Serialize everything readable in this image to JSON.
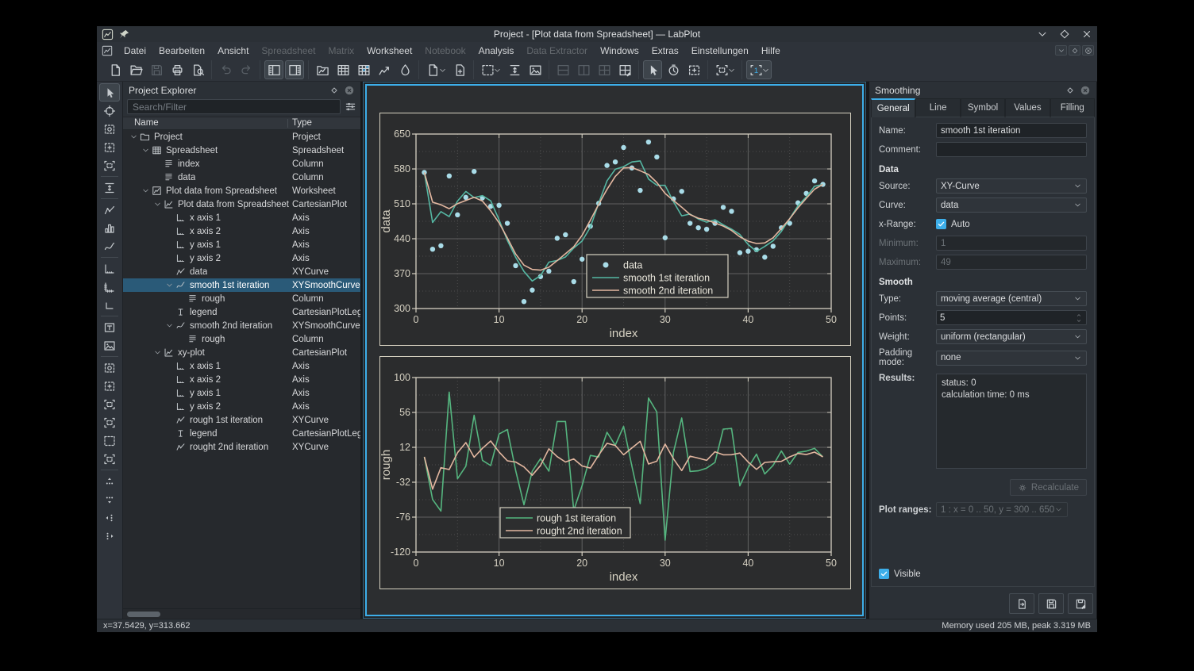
{
  "window": {
    "title": "Project - [Plot data from Spreadsheet] — LabPlot",
    "controls": [
      "minimize",
      "maximize",
      "close"
    ]
  },
  "menubar": {
    "items": [
      {
        "label": "Datei",
        "enabled": true
      },
      {
        "label": "Bearbeiten",
        "enabled": true
      },
      {
        "label": "Ansicht",
        "enabled": true
      },
      {
        "label": "Spreadsheet",
        "enabled": false
      },
      {
        "label": "Matrix",
        "enabled": false
      },
      {
        "label": "Worksheet",
        "enabled": true
      },
      {
        "label": "Notebook",
        "enabled": false
      },
      {
        "label": "Analysis",
        "enabled": true
      },
      {
        "label": "Data Extractor",
        "enabled": false
      },
      {
        "label": "Windows",
        "enabled": true
      },
      {
        "label": "Extras",
        "enabled": true
      },
      {
        "label": "Einstellungen",
        "enabled": true
      },
      {
        "label": "Hilfe",
        "enabled": true
      }
    ],
    "mdi_controls": [
      "chevron-down",
      "restore-diamond",
      "close-circle"
    ]
  },
  "toolbar": {
    "groups": [
      {
        "buttons": [
          {
            "icon": "document-new"
          },
          {
            "icon": "document-open"
          },
          {
            "icon": "document-save",
            "disabled": true
          },
          {
            "icon": "document-print"
          },
          {
            "icon": "print-preview"
          }
        ]
      },
      {
        "buttons": [
          {
            "icon": "edit-undo",
            "disabled": true
          },
          {
            "icon": "edit-redo",
            "disabled": true
          }
        ]
      },
      {
        "buttons": [
          {
            "icon": "panel-left",
            "active": true
          },
          {
            "icon": "panel-right",
            "active": true
          }
        ]
      },
      {
        "buttons": [
          {
            "icon": "new-workbook"
          },
          {
            "icon": "new-spreadsheet"
          },
          {
            "icon": "new-matrix"
          },
          {
            "icon": "new-live-data"
          },
          {
            "icon": "new-note"
          }
        ]
      },
      {
        "buttons": [
          {
            "icon": "document-new",
            "chevron": true
          },
          {
            "icon": "cas-doc"
          }
        ]
      },
      {
        "buttons": [
          {
            "icon": "zoom-select",
            "chevron": true
          },
          {
            "icon": "fit-selection"
          },
          {
            "icon": "export-image"
          }
        ]
      },
      {
        "buttons": [
          {
            "icon": "layout-vertical",
            "disabled": true
          },
          {
            "icon": "layout-horizontal",
            "disabled": true
          },
          {
            "icon": "layout-grid",
            "disabled": true
          },
          {
            "icon": "layout-edit"
          }
        ]
      },
      {
        "buttons": [
          {
            "icon": "cursor-arrow",
            "active": true
          },
          {
            "icon": "timer"
          },
          {
            "icon": "select-region"
          }
        ]
      },
      {
        "buttons": [
          {
            "icon": "plot-range",
            "chevron": true
          }
        ]
      },
      {
        "buttons": [
          {
            "icon": "plot-range-1",
            "active": true,
            "chevron": true
          }
        ]
      }
    ]
  },
  "left_toolbar": {
    "icons": [
      {
        "icon": "cursor-arrow",
        "active": true
      },
      {
        "icon": "navigate-crosshair"
      },
      {
        "icon": "zoom-box"
      },
      {
        "icon": "select-region"
      },
      {
        "icon": "plot-range"
      },
      {
        "sep": true
      },
      {
        "icon": "fit-selection"
      },
      {
        "sep": true
      },
      {
        "icon": "xy-curve"
      },
      {
        "icon": "histogram"
      },
      {
        "icon": "smooth-curve"
      },
      {
        "sep": true
      },
      {
        "icon": "axis"
      },
      {
        "icon": "axis-ticks"
      },
      {
        "icon": "axis-small"
      },
      {
        "sep": true
      },
      {
        "icon": "text-label"
      },
      {
        "icon": "export-image"
      },
      {
        "sep": true
      },
      {
        "icon": "zoom-box"
      },
      {
        "icon": "select-region"
      },
      {
        "icon": "plot-range"
      },
      {
        "icon": "plot-range"
      },
      {
        "icon": "zoom-select"
      },
      {
        "icon": "plot-range"
      },
      {
        "sep": true
      },
      {
        "icon": "move-dots-up"
      },
      {
        "icon": "move-dots-down"
      },
      {
        "icon": "move-dots-left"
      },
      {
        "icon": "move-dots-right"
      }
    ]
  },
  "project_explorer": {
    "title": "Project Explorer",
    "search_placeholder": "Search/Filter",
    "columns": [
      "Name",
      "Type"
    ],
    "rows": [
      {
        "name": "Project",
        "type": "Project",
        "depth": 0,
        "icon": "folder",
        "expanded": true
      },
      {
        "name": "Spreadsheet",
        "type": "Spreadsheet",
        "depth": 1,
        "icon": "spreadsheet",
        "expanded": true
      },
      {
        "name": "index",
        "type": "Column",
        "depth": 2,
        "icon": "column"
      },
      {
        "name": "data",
        "type": "Column",
        "depth": 2,
        "icon": "column"
      },
      {
        "name": "Plot data from Spreadsheet",
        "type": "Worksheet",
        "depth": 1,
        "icon": "worksheet",
        "expanded": true
      },
      {
        "name": "Plot data from Spreadsheet",
        "type": "CartesianPlot",
        "depth": 2,
        "icon": "plot",
        "expanded": true
      },
      {
        "name": "x axis 1",
        "type": "Axis",
        "depth": 3,
        "icon": "axis"
      },
      {
        "name": "x axis 2",
        "type": "Axis",
        "depth": 3,
        "icon": "axis"
      },
      {
        "name": "y axis 1",
        "type": "Axis",
        "depth": 3,
        "icon": "axis"
      },
      {
        "name": "y axis 2",
        "type": "Axis",
        "depth": 3,
        "icon": "axis"
      },
      {
        "name": "data",
        "type": "XYCurve",
        "depth": 3,
        "icon": "xy-curve"
      },
      {
        "name": "smooth 1st iteration",
        "type": "XYSmoothCurve",
        "depth": 3,
        "icon": "smooth-curve",
        "expanded": true,
        "selected": true
      },
      {
        "name": "rough",
        "type": "Column",
        "depth": 4,
        "icon": "column"
      },
      {
        "name": "legend",
        "type": "CartesianPlotLegend",
        "depth": 3,
        "icon": "legend"
      },
      {
        "name": "smooth 2nd iteration",
        "type": "XYSmoothCurve",
        "depth": 3,
        "icon": "smooth-curve",
        "expanded": true
      },
      {
        "name": "rough",
        "type": "Column",
        "depth": 4,
        "icon": "column"
      },
      {
        "name": "xy-plot",
        "type": "CartesianPlot",
        "depth": 2,
        "icon": "plot",
        "expanded": true
      },
      {
        "name": "x axis 1",
        "type": "Axis",
        "depth": 3,
        "icon": "axis"
      },
      {
        "name": "x axis 2",
        "type": "Axis",
        "depth": 3,
        "icon": "axis"
      },
      {
        "name": "y axis 1",
        "type": "Axis",
        "depth": 3,
        "icon": "axis"
      },
      {
        "name": "y axis 2",
        "type": "Axis",
        "depth": 3,
        "icon": "axis"
      },
      {
        "name": "rough 1st iteration",
        "type": "XYCurve",
        "depth": 3,
        "icon": "xy-curve"
      },
      {
        "name": "legend",
        "type": "CartesianPlotLegend",
        "depth": 3,
        "icon": "legend"
      },
      {
        "name": "rought 2nd iteration",
        "type": "XYCurve",
        "depth": 3,
        "icon": "xy-curve"
      }
    ]
  },
  "chart_data": [
    {
      "type": "scatter",
      "title": "",
      "xlabel": "index",
      "ylabel": "data",
      "xlim": [
        0,
        50
      ],
      "ylim": [
        300,
        650
      ],
      "xticks": [
        0,
        10,
        20,
        30,
        40,
        50
      ],
      "xticks_minor": [
        5,
        15,
        25,
        35,
        45
      ],
      "yticks": [
        300,
        370,
        440,
        510,
        580,
        650
      ],
      "yticks_minor": [
        335,
        405,
        475,
        545,
        615
      ],
      "grid": "major solid, minor dashed",
      "x_start": 1,
      "series": [
        {
          "name": "data",
          "key": "data",
          "type": "scatter",
          "color": "#a9dce8",
          "values": [
            573,
            419,
            426,
            566,
            488,
            523,
            575,
            522,
            505,
            507,
            471,
            386,
            314,
            337,
            364,
            375,
            441,
            448,
            354,
            399,
            465,
            511,
            587,
            594,
            623,
            582,
            537,
            634,
            604,
            442,
            520,
            535,
            471,
            462,
            459,
            471,
            503,
            495,
            412,
            415,
            418,
            403,
            425,
            462,
            471,
            512,
            531,
            556,
            549
          ]
        },
        {
          "name": "smooth 1st iteration",
          "key": "smooth1",
          "type": "line",
          "color": "#55b7a3",
          "derived": "5-point central moving average of data, 1 iteration, uniform weight, no padding"
        },
        {
          "name": "smooth 2nd iteration",
          "key": "smooth2",
          "type": "line",
          "color": "#e3b7a0",
          "derived": "5-point central moving average of data, 2 iterations, uniform weight, no padding"
        }
      ],
      "legend": {
        "position": "inside, center-right",
        "items": [
          "data",
          "smooth 1st iteration",
          "smooth 2nd iteration"
        ],
        "px": {
          "x": 215,
          "y": 152,
          "w": 178,
          "h": 54
        }
      }
    },
    {
      "type": "line",
      "title": "",
      "xlabel": "index",
      "ylabel": "rough",
      "xlim": [
        0,
        50
      ],
      "ylim": [
        -120,
        100
      ],
      "xticks": [
        0,
        10,
        20,
        30,
        40,
        50
      ],
      "xticks_minor": [
        5,
        15,
        25,
        35,
        45
      ],
      "yticks": [
        -120,
        -76,
        -32,
        12,
        56,
        100
      ],
      "yticks_minor": [
        -98,
        -54,
        -10,
        34,
        78
      ],
      "grid": "major solid, minor dashed",
      "x_start": 1,
      "series": [
        {
          "name": "rough 1st iteration",
          "key": "rough1",
          "type": "line",
          "color": "#55b57f",
          "derived": "data minus smooth 1st iteration"
        },
        {
          "name": "rought 2nd iteration",
          "key": "rough2",
          "type": "line",
          "color": "#e3b7a0",
          "derived": "smooth 1st iteration minus smooth 2nd iteration"
        }
      ],
      "legend": {
        "position": "inside, bottom-left-of-center",
        "items": [
          "rough 1st iteration",
          "rought 2nd iteration"
        ],
        "px": {
          "x": 106,
          "y": 164,
          "w": 164,
          "h": 38
        }
      }
    }
  ],
  "smoothing_panel": {
    "title": "Smoothing",
    "tabs": [
      {
        "label": "General",
        "active": true
      },
      {
        "label": "Line",
        "active": false
      },
      {
        "label": "Symbol",
        "active": false
      },
      {
        "label": "Values",
        "active": false
      },
      {
        "label": "Filling",
        "active": false
      }
    ],
    "name_label": "Name:",
    "name_value": "smooth 1st iteration",
    "comment_label": "Comment:",
    "comment_value": "",
    "data_section": "Data",
    "source_label": "Source:",
    "source_value": "XY-Curve",
    "curve_label": "Curve:",
    "curve_value": "data",
    "xrange_label": "x-Range:",
    "auto_label": "Auto",
    "auto_checked": true,
    "min_label": "Minimum:",
    "min_value": "1",
    "max_label": "Maximum:",
    "max_value": "49",
    "smooth_section": "Smooth",
    "type_label": "Type:",
    "type_value": "moving average (central)",
    "points_label": "Points:",
    "points_value": "5",
    "weight_label": "Weight:",
    "weight_value": "uniform (rectangular)",
    "padding_label": "Padding mode:",
    "padding_value": "none",
    "results_label": "Results:",
    "results_line1": "status: 0",
    "results_line2": "calculation time: 0 ms",
    "recalculate_label": "Recalculate",
    "plot_ranges_label": "Plot ranges:",
    "plot_ranges_value": "1 : x = 0 .. 50, y = 300 .. 650",
    "visible_label": "Visible",
    "visible_checked": true
  },
  "statusbar": {
    "left": "x=37.5429, y=313.662",
    "right": "Memory used 205 MB, peak 3.319 MB"
  },
  "colors": {
    "accent": "#3daee9",
    "chrome": "#2e333a",
    "view_bg": "#26292d",
    "worksheet_bg": "#2c2e30",
    "plot_frame_border": "#d6d1c0",
    "axis_text": "#d6d1c2",
    "grid_major": "#626262",
    "grid_minor": "#4d4d4d",
    "scatter": "#a9dce8",
    "smooth1": "#55b7a3",
    "smooth2": "#e3b7a0",
    "rough1": "#55b57f",
    "selection": "#2a5a78",
    "legend_bg": "#2d2e2f"
  }
}
